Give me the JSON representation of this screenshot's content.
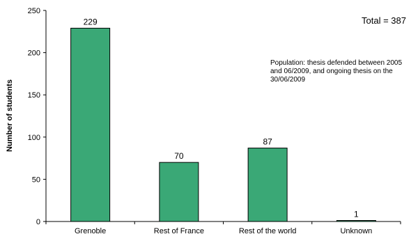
{
  "chart_data": {
    "type": "bar",
    "title": "",
    "xlabel": "",
    "ylabel": "Number of students",
    "ylim": [
      0,
      250
    ],
    "yticks": [
      0,
      50,
      100,
      150,
      200,
      250
    ],
    "grid": false,
    "categories": [
      "Grenoble",
      "Rest of France",
      "Rest of the world",
      "Unknown"
    ],
    "values": [
      229,
      70,
      87,
      1
    ],
    "data_labels": [
      "229",
      "70",
      "87",
      "1"
    ],
    "bar_color": "#3aa876",
    "bar_edge_color": "#000000",
    "annotations": {
      "total": "Total = 387",
      "note_lines": [
        "Population: thesis defended between 2005",
        "and 06/2009, and ongoing thesis on the",
        "30/06/2009"
      ]
    }
  }
}
